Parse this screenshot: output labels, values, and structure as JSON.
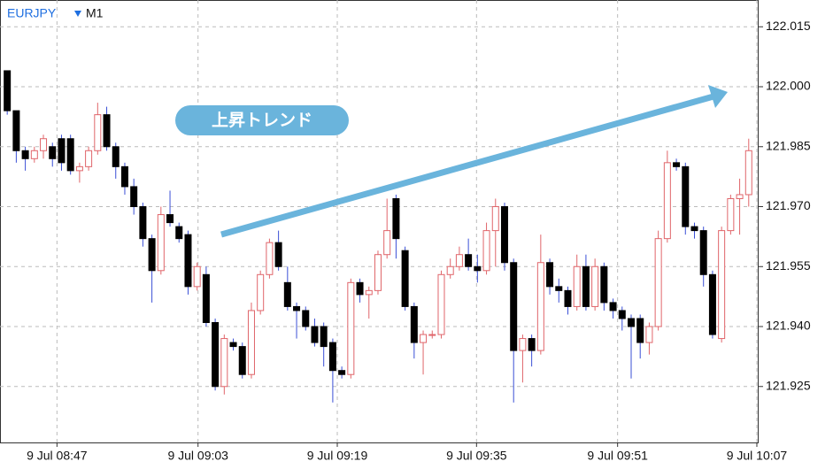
{
  "chart_data": {
    "type": "candlestick",
    "symbol": "EURJPY",
    "timeframe": "M1",
    "annotation": "上昇トレンド",
    "up_color": "#e0656a",
    "down_color": "#000000",
    "down_wick_color": "#3a4fd6",
    "grid": true,
    "ylim": [
      121.911,
      122.0217
    ],
    "yticks": [
      122.015,
      {
        "value": 122.0,
        "label": "122.000"
      },
      121.985,
      {
        "value": 121.97,
        "label": "121.970"
      },
      121.955,
      {
        "value": 121.94,
        "label": "121.940"
      },
      121.925
    ],
    "xlim": [
      -0.8,
      83
    ],
    "xticks": [
      {
        "value": 5.5,
        "label": "9 Jul 08:47"
      },
      {
        "value": 21.1,
        "label": "9 Jul 09:03"
      },
      {
        "value": 36.5,
        "label": "9 Jul 09:19"
      },
      {
        "value": 51.9,
        "label": "9 Jul 09:35"
      },
      {
        "value": 67.5,
        "label": "9 Jul 09:51"
      },
      {
        "value": 82.9,
        "label": "9 Jul 10:07"
      }
    ],
    "open": [
      122.004,
      121.994,
      121.984,
      121.982,
      121.984,
      121.985,
      121.987,
      121.987,
      121.979,
      121.98,
      121.984,
      121.993,
      121.985,
      121.98,
      121.975,
      121.97,
      121.962,
      121.954,
      121.968,
      121.965,
      121.963,
      121.95,
      121.953,
      121.941,
      121.925,
      121.936,
      121.935,
      121.928,
      121.944,
      121.953,
      121.961,
      121.951,
      121.945,
      121.944,
      121.94,
      121.94,
      121.936,
      121.929,
      121.928,
      121.951,
      121.948,
      121.949,
      121.958,
      121.972,
      121.959,
      121.945,
      121.936,
      121.938,
      121.938,
      121.953,
      121.955,
      121.958,
      121.955,
      121.954,
      121.964,
      121.97,
      121.956,
      121.934,
      121.937,
      121.934,
      121.956,
      121.95,
      121.949,
      121.945,
      121.955,
      121.945,
      121.955,
      121.946,
      121.944,
      121.942,
      121.942,
      121.936,
      121.94,
      121.962,
      121.981,
      121.98,
      121.965,
      121.964,
      121.953,
      121.937,
      121.964,
      121.972,
      121.973
    ],
    "high": [
      122.004,
      121.994,
      121.985,
      121.985,
      121.988,
      121.986,
      121.988,
      121.988,
      121.981,
      121.985,
      121.996,
      121.995,
      121.986,
      121.981,
      121.977,
      121.971,
      121.963,
      121.97,
      121.974,
      121.966,
      121.964,
      121.956,
      121.955,
      121.942,
      121.938,
      121.937,
      121.936,
      121.946,
      121.954,
      121.962,
      121.964,
      121.955,
      121.946,
      121.945,
      121.942,
      121.941,
      121.937,
      121.93,
      121.952,
      121.952,
      121.95,
      121.959,
      121.972,
      121.973,
      121.96,
      121.946,
      121.939,
      121.939,
      121.954,
      121.957,
      121.96,
      121.962,
      121.958,
      121.966,
      121.972,
      121.971,
      121.957,
      121.938,
      121.938,
      121.963,
      121.957,
      121.952,
      121.95,
      121.958,
      121.958,
      121.957,
      121.956,
      121.947,
      121.945,
      121.943,
      121.943,
      121.941,
      121.964,
      121.984,
      121.982,
      121.981,
      121.966,
      121.965,
      121.954,
      121.965,
      121.973,
      121.977,
      121.987
    ],
    "low": [
      121.993,
      121.981,
      121.979,
      121.981,
      121.982,
      121.98,
      121.979,
      121.978,
      121.976,
      121.979,
      121.983,
      121.984,
      121.977,
      121.973,
      121.968,
      121.96,
      121.946,
      121.953,
      121.965,
      121.961,
      121.948,
      121.949,
      121.94,
      121.924,
      121.923,
      121.934,
      121.927,
      121.927,
      121.943,
      121.952,
      121.954,
      121.944,
      121.937,
      121.939,
      121.935,
      121.93,
      121.921,
      121.927,
      121.927,
      121.946,
      121.942,
      121.948,
      121.957,
      121.957,
      121.944,
      121.932,
      121.928,
      121.937,
      121.937,
      121.952,
      121.954,
      121.954,
      121.951,
      121.953,
      121.955,
      121.954,
      121.921,
      121.926,
      121.93,
      121.933,
      121.948,
      121.946,
      121.943,
      121.944,
      121.944,
      121.944,
      121.944,
      121.942,
      121.939,
      121.927,
      121.932,
      121.933,
      121.939,
      121.961,
      121.979,
      121.963,
      121.962,
      121.95,
      121.937,
      121.936,
      121.963,
      121.963,
      121.97
    ],
    "close": [
      121.994,
      121.984,
      121.982,
      121.984,
      121.987,
      121.982,
      121.981,
      121.979,
      121.98,
      121.984,
      121.993,
      121.985,
      121.98,
      121.975,
      121.97,
      121.962,
      121.954,
      121.968,
      121.966,
      121.962,
      121.95,
      121.955,
      121.941,
      121.925,
      121.937,
      121.935,
      121.928,
      121.944,
      121.953,
      121.961,
      121.955,
      121.945,
      121.944,
      121.94,
      121.936,
      121.935,
      121.929,
      121.928,
      121.951,
      121.948,
      121.949,
      121.958,
      121.964,
      121.962,
      121.945,
      121.936,
      121.938,
      121.938,
      121.953,
      121.955,
      121.958,
      121.955,
      121.954,
      121.964,
      121.97,
      121.956,
      121.934,
      121.937,
      121.934,
      121.956,
      121.95,
      121.949,
      121.945,
      121.955,
      121.945,
      121.955,
      121.946,
      121.944,
      121.942,
      121.94,
      121.936,
      121.94,
      121.962,
      121.981,
      121.98,
      121.965,
      121.964,
      121.953,
      121.938,
      121.964,
      121.972,
      121.973,
      121.984
    ]
  }
}
